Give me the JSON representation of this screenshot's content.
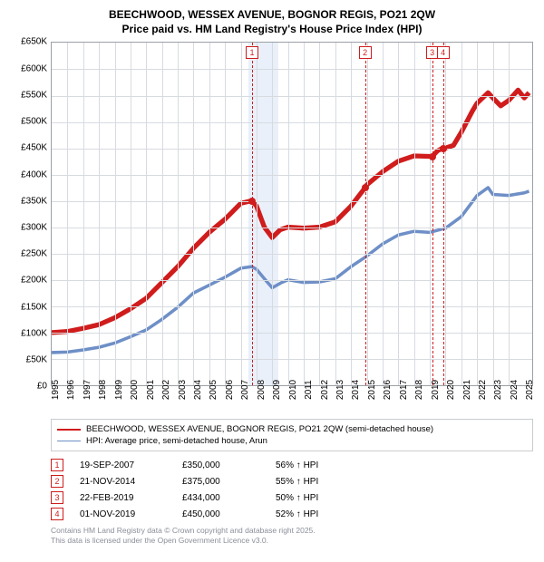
{
  "title_line1": "BEECHWOOD, WESSEX AVENUE, BOGNOR REGIS, PO21 2QW",
  "title_line2": "Price paid vs. HM Land Registry's House Price Index (HPI)",
  "chart": {
    "type": "line",
    "background_color": "#ffffff",
    "grid_color": "#d7dbe0",
    "border_color": "#9aa0a6",
    "shade_color": "#eaf0fa",
    "xlim": [
      1995,
      2025.5
    ],
    "ylim": [
      0,
      650000
    ],
    "ytick_step": 50000,
    "y_ticks": [
      "£0",
      "£50K",
      "£100K",
      "£150K",
      "£200K",
      "£250K",
      "£300K",
      "£350K",
      "£400K",
      "£450K",
      "£500K",
      "£550K",
      "£600K",
      "£650K"
    ],
    "x_ticks": [
      "1995",
      "1996",
      "1997",
      "1998",
      "1999",
      "2000",
      "2001",
      "2002",
      "2003",
      "2004",
      "2005",
      "2006",
      "2007",
      "2008",
      "2009",
      "2010",
      "2011",
      "2012",
      "2013",
      "2014",
      "2015",
      "2016",
      "2017",
      "2018",
      "2019",
      "2020",
      "2021",
      "2022",
      "2023",
      "2024",
      "2025"
    ],
    "shade_range": [
      2007.5,
      2009.4
    ],
    "label_fontsize": 10,
    "title_fontsize": 12,
    "series": [
      {
        "name": "property",
        "color": "#d01c1c",
        "width": 2.4,
        "points": [
          [
            1995,
            100000
          ],
          [
            1996,
            102000
          ],
          [
            1997,
            108000
          ],
          [
            1998,
            115000
          ],
          [
            1999,
            128000
          ],
          [
            2000,
            145000
          ],
          [
            2001,
            165000
          ],
          [
            2002,
            195000
          ],
          [
            2003,
            225000
          ],
          [
            2004,
            260000
          ],
          [
            2005,
            290000
          ],
          [
            2006,
            315000
          ],
          [
            2007,
            345000
          ],
          [
            2007.7,
            350000
          ],
          [
            2008,
            340000
          ],
          [
            2008.5,
            300000
          ],
          [
            2009,
            280000
          ],
          [
            2009.5,
            295000
          ],
          [
            2010,
            300000
          ],
          [
            2011,
            298000
          ],
          [
            2012,
            300000
          ],
          [
            2013,
            310000
          ],
          [
            2014,
            340000
          ],
          [
            2014.9,
            375000
          ],
          [
            2015,
            380000
          ],
          [
            2016,
            405000
          ],
          [
            2017,
            425000
          ],
          [
            2018,
            435000
          ],
          [
            2019.15,
            434000
          ],
          [
            2019.5,
            445000
          ],
          [
            2019.84,
            450000
          ],
          [
            2020,
            450000
          ],
          [
            2020.5,
            455000
          ],
          [
            2021,
            480000
          ],
          [
            2021.7,
            520000
          ],
          [
            2022,
            535000
          ],
          [
            2022.7,
            555000
          ],
          [
            2023,
            545000
          ],
          [
            2023.5,
            530000
          ],
          [
            2024,
            540000
          ],
          [
            2024.6,
            560000
          ],
          [
            2025,
            545000
          ],
          [
            2025.3,
            555000
          ]
        ]
      },
      {
        "name": "hpi",
        "color": "#6e8fc7",
        "width": 1.6,
        "points": [
          [
            1995,
            62000
          ],
          [
            1996,
            63000
          ],
          [
            1997,
            67000
          ],
          [
            1998,
            72000
          ],
          [
            1999,
            80000
          ],
          [
            2000,
            92000
          ],
          [
            2001,
            105000
          ],
          [
            2002,
            125000
          ],
          [
            2003,
            148000
          ],
          [
            2004,
            175000
          ],
          [
            2005,
            190000
          ],
          [
            2006,
            205000
          ],
          [
            2007,
            222000
          ],
          [
            2007.7,
            225000
          ],
          [
            2008,
            220000
          ],
          [
            2008.7,
            195000
          ],
          [
            2009,
            185000
          ],
          [
            2009.6,
            195000
          ],
          [
            2010,
            200000
          ],
          [
            2011,
            195000
          ],
          [
            2012,
            196000
          ],
          [
            2013,
            202000
          ],
          [
            2014,
            225000
          ],
          [
            2015,
            245000
          ],
          [
            2016,
            268000
          ],
          [
            2017,
            285000
          ],
          [
            2018,
            292000
          ],
          [
            2019,
            290000
          ],
          [
            2020,
            298000
          ],
          [
            2021,
            320000
          ],
          [
            2022,
            360000
          ],
          [
            2022.7,
            375000
          ],
          [
            2023,
            362000
          ],
          [
            2024,
            360000
          ],
          [
            2025,
            365000
          ],
          [
            2025.3,
            368000
          ]
        ]
      }
    ],
    "sale_markers": [
      {
        "n": "1",
        "x": 2007.72,
        "y": 350000,
        "color": "#d01c1c"
      },
      {
        "n": "2",
        "x": 2014.89,
        "y": 375000,
        "color": "#d01c1c"
      },
      {
        "n": "3",
        "x": 2019.15,
        "y": 434000,
        "color": "#d01c1c"
      },
      {
        "n": "4",
        "x": 2019.84,
        "y": 450000,
        "color": "#d01c1c"
      }
    ]
  },
  "legend": {
    "items": [
      {
        "color": "#d01c1c",
        "width": 2.4,
        "label": "BEECHWOOD, WESSEX AVENUE, BOGNOR REGIS, PO21 2QW (semi-detached house)"
      },
      {
        "color": "#6e8fc7",
        "width": 1.6,
        "label": "HPI: Average price, semi-detached house, Arun"
      }
    ]
  },
  "sales": [
    {
      "n": "1",
      "date": "19-SEP-2007",
      "price": "£350,000",
      "hpi": "56% ↑ HPI"
    },
    {
      "n": "2",
      "date": "21-NOV-2014",
      "price": "£375,000",
      "hpi": "55% ↑ HPI"
    },
    {
      "n": "3",
      "date": "22-FEB-2019",
      "price": "£434,000",
      "hpi": "50% ↑ HPI"
    },
    {
      "n": "4",
      "date": "01-NOV-2019",
      "price": "£450,000",
      "hpi": "52% ↑ HPI"
    }
  ],
  "footnote_line1": "Contains HM Land Registry data © Crown copyright and database right 2025.",
  "footnote_line2": "This data is licensed under the Open Government Licence v3.0."
}
